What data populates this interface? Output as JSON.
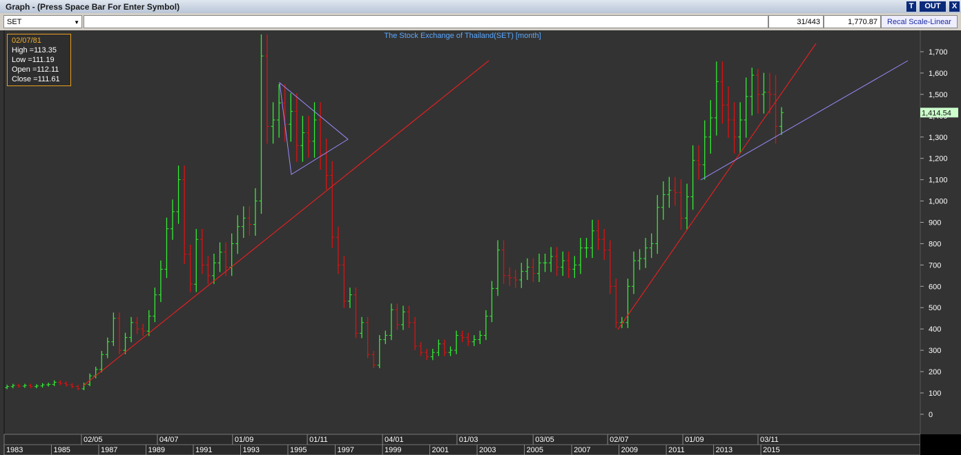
{
  "window": {
    "title": "Graph - (Press Space Bar For Enter Symbol)",
    "buttons": [
      "T",
      "OUT",
      "X"
    ]
  },
  "toolbar": {
    "symbol": "SET",
    "position": "31/443",
    "value": "1,770.87",
    "scale_button": "Recal Scale-Linear"
  },
  "info_box": {
    "date": "02/07/81",
    "lines": [
      "High =113.35",
      "Low =111.19",
      "Open =112.11",
      "Close =111.61"
    ]
  },
  "chart_data": {
    "type": "ohlc",
    "title": "The Stock Exchange of Thailand(SET) [month]",
    "x": [
      1983,
      1983.25,
      1983.5,
      1983.75,
      1984,
      1984.25,
      1984.5,
      1984.75,
      1985,
      1985.25,
      1985.5,
      1985.75,
      1986,
      1986.25,
      1986.5,
      1986.75,
      1987,
      1987.25,
      1987.5,
      1987.75,
      1988,
      1988.25,
      1988.5,
      1988.75,
      1989,
      1989.25,
      1989.5,
      1989.75,
      1990,
      1990.25,
      1990.5,
      1990.75,
      1991,
      1991.25,
      1991.5,
      1991.75,
      1992,
      1992.25,
      1992.5,
      1992.75,
      1993,
      1993.25,
      1993.5,
      1993.75,
      1994,
      1994.25,
      1994.5,
      1994.75,
      1995,
      1995.25,
      1995.5,
      1995.75,
      1996,
      1996.25,
      1996.5,
      1996.75,
      1997,
      1997.25,
      1997.5,
      1997.75,
      1998,
      1998.25,
      1998.5,
      1998.75,
      1999,
      1999.25,
      1999.5,
      1999.75,
      2000,
      2000.25,
      2000.5,
      2000.75,
      2001,
      2001.25,
      2001.5,
      2001.75,
      2002,
      2002.25,
      2002.5,
      2002.75,
      2003,
      2003.25,
      2003.5,
      2003.75,
      2004,
      2004.25,
      2004.5,
      2004.75,
      2005,
      2005.25,
      2005.5,
      2005.75,
      2006,
      2006.25,
      2006.5,
      2006.75,
      2007,
      2007.25,
      2007.5,
      2007.75,
      2008,
      2008.25,
      2008.5,
      2008.75,
      2009,
      2009.25,
      2009.5,
      2009.75,
      2010,
      2010.25,
      2010.5,
      2010.75,
      2011,
      2011.25,
      2011.5,
      2011.75,
      2012,
      2012.25,
      2012.5,
      2012.75,
      2013,
      2013.25,
      2013.5,
      2013.75,
      2014,
      2014.25,
      2014.5,
      2014.75,
      2015,
      2015.25,
      2015.5,
      2015.75
    ],
    "open": [
      125,
      130,
      135,
      132,
      135,
      130,
      133,
      138,
      140,
      150,
      145,
      138,
      130,
      120,
      140,
      180,
      210,
      280,
      340,
      450,
      300,
      360,
      430,
      400,
      390,
      460,
      560,
      680,
      870,
      950,
      1100,
      750,
      610,
      820,
      700,
      650,
      710,
      760,
      690,
      800,
      880,
      920,
      890,
      1000,
      1680,
      1350,
      1380,
      1460,
      1360,
      1420,
      1260,
      1320,
      1280,
      1380,
      1220,
      1120,
      830,
      700,
      530,
      560,
      380,
      430,
      280,
      230,
      350,
      370,
      490,
      420,
      480,
      430,
      320,
      290,
      270,
      290,
      330,
      290,
      300,
      370,
      360,
      340,
      350,
      370,
      460,
      590,
      770,
      650,
      640,
      630,
      670,
      690,
      660,
      710,
      710,
      740,
      690,
      720,
      680,
      700,
      780,
      780,
      860,
      820,
      770,
      600,
      430,
      430,
      600,
      720,
      730,
      780,
      800,
      970,
      1030,
      1050,
      1040,
      920,
      1020,
      1190,
      1170,
      1300,
      1390,
      1560,
      1450,
      1380,
      1300,
      1380,
      1490,
      1590,
      1500,
      1510,
      1500,
      1350
    ],
    "high": [
      138,
      143,
      143,
      143,
      143,
      141,
      146,
      148,
      159,
      159,
      154,
      146,
      138,
      148,
      191,
      223,
      297,
      360,
      477,
      477,
      382,
      456,
      456,
      424,
      488,
      594,
      721,
      922,
      1007,
      1166,
      1166,
      795,
      869,
      869,
      742,
      753,
      806,
      806,
      848,
      933,
      975,
      975,
      1060,
      1781,
      1781,
      1463,
      1548,
      1548,
      1505,
      1505,
      1399,
      1399,
      1463,
      1463,
      1293,
      1187,
      880,
      742,
      594,
      594,
      456,
      456,
      297,
      371,
      392,
      519,
      519,
      509,
      509,
      456,
      339,
      307,
      307,
      350,
      350,
      318,
      392,
      392,
      382,
      371,
      392,
      488,
      625,
      816,
      816,
      689,
      678,
      710,
      731,
      731,
      753,
      753,
      784,
      784,
      763,
      763,
      742,
      827,
      827,
      912,
      912,
      869,
      816,
      636,
      456,
      636,
      763,
      774,
      827,
      848,
      1028,
      1092,
      1113,
      1113,
      1102,
      1081,
      1261,
      1261,
      1378,
      1473,
      1654,
      1654,
      1537,
      1463,
      1463,
      1579,
      1625,
      1620,
      1601,
      1601,
      1590,
      1440
    ],
    "low": [
      118,
      122,
      124,
      124,
      122,
      122,
      125,
      130,
      132,
      136,
      130,
      122,
      113,
      113,
      132,
      169,
      197,
      263,
      320,
      282,
      282,
      338,
      376,
      367,
      367,
      432,
      526,
      639,
      818,
      893,
      705,
      573,
      573,
      658,
      611,
      611,
      667,
      649,
      649,
      752,
      827,
      837,
      837,
      940,
      1269,
      1269,
      1297,
      1278,
      1278,
      1184,
      1184,
      1203,
      1203,
      1147,
      1053,
      780,
      658,
      498,
      498,
      357,
      357,
      263,
      216,
      216,
      329,
      348,
      395,
      395,
      404,
      301,
      273,
      254,
      254,
      273,
      273,
      273,
      282,
      338,
      320,
      320,
      329,
      348,
      432,
      555,
      611,
      602,
      592,
      592,
      630,
      620,
      620,
      667,
      667,
      649,
      649,
      639,
      639,
      658,
      733,
      733,
      771,
      724,
      564,
      404,
      404,
      404,
      564,
      677,
      686,
      733,
      752,
      912,
      968,
      978,
      865,
      865,
      959,
      1100,
      1100,
      1222,
      1307,
      1363,
      1297,
      1222,
      1222,
      1297,
      1401,
      1410,
      1410,
      1410,
      1269,
      1310
    ],
    "close": [
      130,
      135,
      132,
      135,
      130,
      133,
      138,
      140,
      150,
      145,
      138,
      130,
      120,
      140,
      180,
      210,
      280,
      340,
      450,
      300,
      360,
      430,
      400,
      390,
      460,
      560,
      680,
      870,
      950,
      1100,
      750,
      610,
      820,
      700,
      650,
      710,
      760,
      690,
      800,
      880,
      920,
      890,
      1000,
      1680,
      1350,
      1380,
      1460,
      1360,
      1420,
      1260,
      1320,
      1280,
      1380,
      1220,
      1120,
      830,
      700,
      530,
      560,
      380,
      430,
      280,
      230,
      350,
      370,
      490,
      420,
      480,
      430,
      320,
      290,
      270,
      290,
      330,
      290,
      300,
      370,
      360,
      340,
      350,
      370,
      460,
      590,
      770,
      650,
      640,
      630,
      670,
      690,
      660,
      710,
      710,
      740,
      690,
      720,
      680,
      700,
      780,
      780,
      860,
      820,
      770,
      600,
      430,
      430,
      600,
      720,
      730,
      780,
      800,
      970,
      1030,
      1050,
      1040,
      920,
      1020,
      1190,
      1170,
      1300,
      1390,
      1560,
      1450,
      1380,
      1300,
      1380,
      1490,
      1590,
      1500,
      1510,
      1500,
      1350,
      1414.54
    ],
    "up_color": "#33ee33",
    "down_color": "#dd1111",
    "xlim": [
      1983.06,
      2021.74
    ],
    "ylim": [
      -94,
      1797
    ],
    "yticks": [
      0,
      100,
      200,
      300,
      400,
      500,
      600,
      700,
      800,
      900,
      {
        "value": 1000,
        "label": "1,000"
      },
      {
        "value": 1100,
        "label": "1,100"
      },
      {
        "value": 1200,
        "label": "1,200"
      },
      {
        "value": 1300,
        "label": "1,300"
      },
      {
        "value": 1400,
        "label": "1,400"
      },
      {
        "value": 1500,
        "label": "1,500"
      },
      {
        "value": 1600,
        "label": "1,600"
      },
      {
        "value": 1700,
        "label": "1,700"
      }
    ],
    "xticks": [
      1983,
      1985,
      1987,
      1989,
      1991,
      1993,
      1995,
      1997,
      1999,
      2001,
      2003,
      2005,
      2007,
      2009,
      2011,
      2013,
      2015
    ],
    "date_ticks": [
      {
        "value": 1986.27,
        "label": "02/05"
      },
      {
        "value": 1989.48,
        "label": "04/07"
      },
      {
        "value": 1992.66,
        "label": "01/09"
      },
      {
        "value": 1995.82,
        "label": "01/11"
      },
      {
        "value": 1999.0,
        "label": "04/01"
      },
      {
        "value": 2002.15,
        "label": "01/03"
      },
      {
        "value": 2005.37,
        "label": "03/05"
      },
      {
        "value": 2008.52,
        "label": "02/07"
      },
      {
        "value": 2011.7,
        "label": "01/09"
      },
      {
        "value": 2014.88,
        "label": "03/11"
      }
    ],
    "last_price": {
      "value": 1414.54,
      "label": "1,414.54"
    }
  }
}
